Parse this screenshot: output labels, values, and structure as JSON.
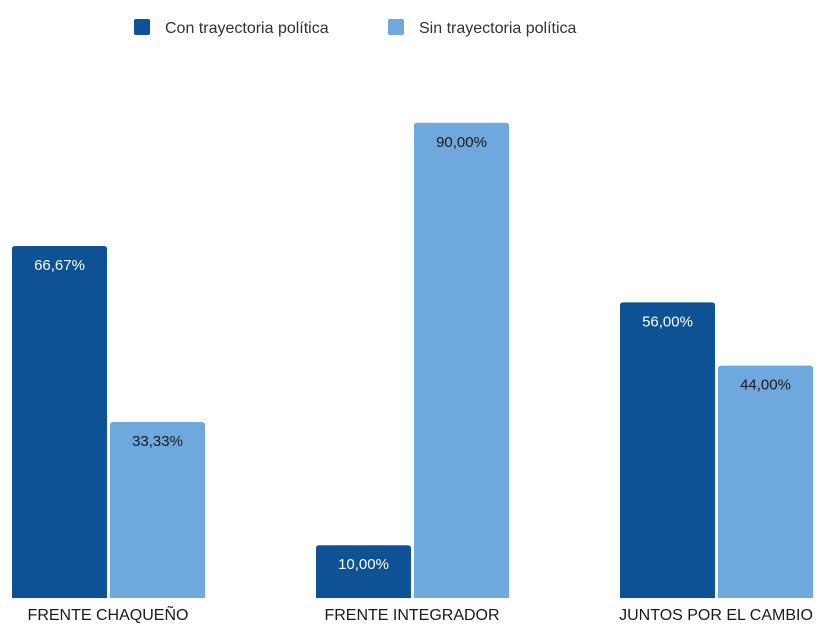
{
  "chart_data": {
    "type": "bar",
    "categories": [
      "FRENTE CHAQUEÑO",
      "FRENTE INTEGRADOR",
      "JUNTOS POR EL CAMBIO"
    ],
    "series": [
      {
        "name": "Con trayectoria política",
        "values": [
          66.67,
          10.0,
          56.0
        ],
        "labels": [
          "66,67%",
          "10,00%",
          "56,00%"
        ],
        "color": "#0d5295"
      },
      {
        "name": "Sin trayectoria política",
        "values": [
          33.33,
          90.0,
          44.0
        ],
        "labels": [
          "33,33%",
          "90,00%",
          "44,00%"
        ],
        "color": "#6fa8dc"
      }
    ],
    "ylim": [
      0,
      100
    ],
    "legend_position": "top",
    "grid": false
  }
}
